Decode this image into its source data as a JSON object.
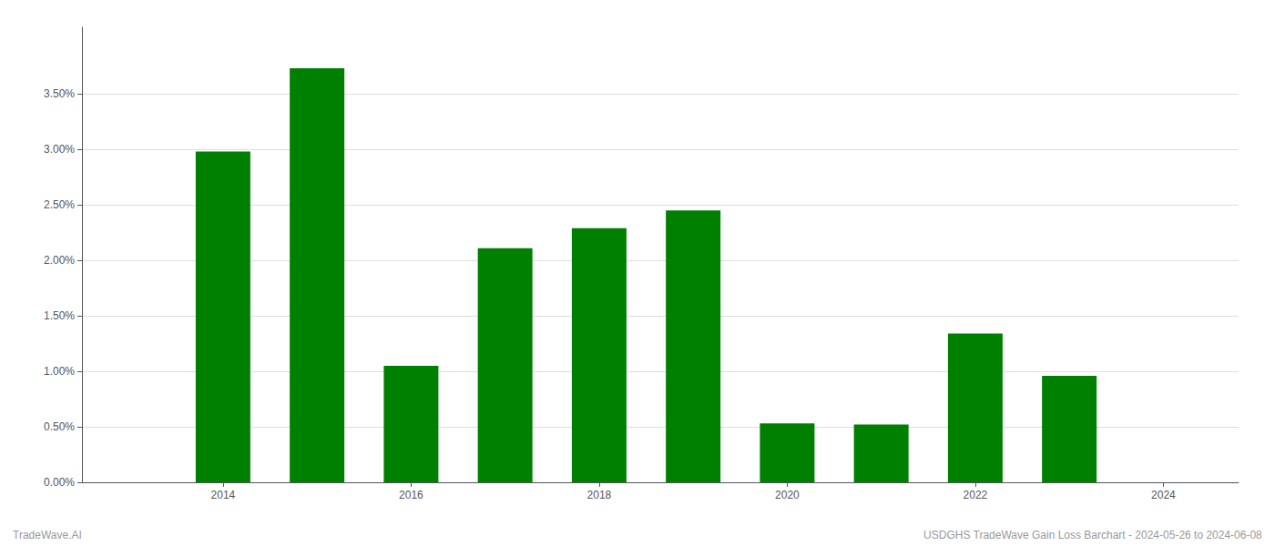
{
  "chart_data": {
    "type": "bar",
    "x": [
      2013,
      2014,
      2015,
      2016,
      2017,
      2018,
      2019,
      2020,
      2021,
      2022,
      2023,
      2024
    ],
    "values": [
      0.0,
      0.0298,
      0.0373,
      0.0105,
      0.0211,
      0.0229,
      0.0245,
      0.0053,
      0.0052,
      0.0134,
      0.0096,
      0.0
    ],
    "color": "#008000",
    "xlim": [
      2012.5,
      2024.8
    ],
    "xticks": [
      2014,
      2016,
      2018,
      2020,
      2022,
      2024
    ],
    "ylim": [
      0,
      0.041
    ],
    "yticks": [
      {
        "value": 0.0,
        "label": "0.00%"
      },
      {
        "value": 0.005,
        "label": "0.50%"
      },
      {
        "value": 0.01,
        "label": "1.00%"
      },
      {
        "value": 0.015,
        "label": "1.50%"
      },
      {
        "value": 0.02,
        "label": "2.00%"
      },
      {
        "value": 0.025,
        "label": "2.50%"
      },
      {
        "value": 0.03,
        "label": "3.00%"
      },
      {
        "value": 0.035,
        "label": "3.50%"
      }
    ],
    "grid": true,
    "annotations": [
      "TradeWave.AI",
      "USDGHS TradeWave Gain Loss Barchart - 2024-05-26 to 2024-06-08"
    ]
  }
}
